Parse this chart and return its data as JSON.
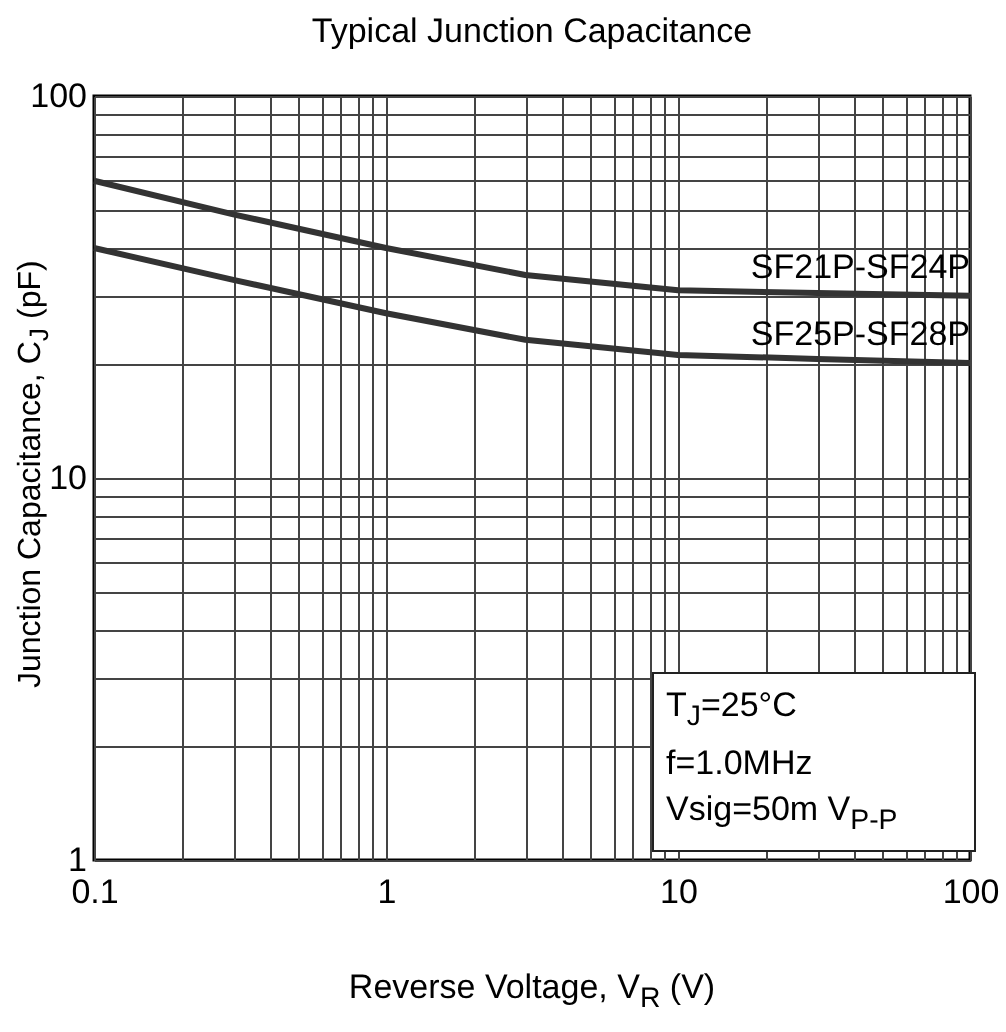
{
  "chart_data": {
    "type": "line",
    "title": "Typical Junction Capacitance",
    "xlabel": "Reverse Voltage, V$_{R}$ (V)",
    "ylabel": "Junction Capacitance, C$_{J}$ (pF)",
    "log": "xy",
    "grid": true,
    "line_style": "solid",
    "marker": "none",
    "x": [
      0.1,
      0.3,
      1,
      3,
      10,
      30,
      100
    ],
    "series": [
      {
        "name": "SF21P-SF24P",
        "color": "#333333",
        "values": [
          60,
          49,
          40,
          34,
          31,
          30.5,
          30
        ]
      },
      {
        "name": "SF25P-SF28P",
        "color": "#333333",
        "values": [
          40,
          33,
          27,
          23,
          21,
          20.5,
          20
        ]
      }
    ],
    "xlim": [
      0.1,
      100
    ],
    "ylim": [
      1,
      100
    ],
    "xticks": [
      0.1,
      {
        "value": 0.2,
        "label": null
      },
      {
        "value": 0.3,
        "label": null
      },
      {
        "value": 0.4,
        "label": null
      },
      {
        "value": 0.5,
        "label": null
      },
      {
        "value": 0.6,
        "label": null
      },
      {
        "value": 0.7,
        "label": null
      },
      {
        "value": 0.8,
        "label": null
      },
      {
        "value": 0.9,
        "label": null
      },
      1,
      {
        "value": 2,
        "label": null
      },
      {
        "value": 3,
        "label": null
      },
      {
        "value": 4,
        "label": null
      },
      {
        "value": 5,
        "label": null
      },
      {
        "value": 6,
        "label": null
      },
      {
        "value": 7,
        "label": null
      },
      {
        "value": 8,
        "label": null
      },
      {
        "value": 9,
        "label": null
      },
      10,
      {
        "value": 20,
        "label": null
      },
      {
        "value": 30,
        "label": null
      },
      {
        "value": 40,
        "label": null
      },
      {
        "value": 50,
        "label": null
      },
      {
        "value": 60,
        "label": null
      },
      {
        "value": 70,
        "label": null
      },
      {
        "value": 80,
        "label": null
      },
      {
        "value": 90,
        "label": null
      },
      100
    ],
    "yticks": [
      1,
      {
        "value": 2,
        "label": null
      },
      {
        "value": 3,
        "label": null
      },
      {
        "value": 4,
        "label": null
      },
      {
        "value": 5,
        "label": null
      },
      {
        "value": 6,
        "label": null
      },
      {
        "value": 7,
        "label": null
      },
      {
        "value": 8,
        "label": null
      },
      {
        "value": 9,
        "label": null
      },
      10,
      {
        "value": 20,
        "label": null
      },
      {
        "value": 30,
        "label": null
      },
      {
        "value": 40,
        "label": null
      },
      {
        "value": 50,
        "label": null
      },
      {
        "value": 60,
        "label": null
      },
      {
        "value": 70,
        "label": null
      },
      {
        "value": 80,
        "label": null
      },
      {
        "value": 90,
        "label": null
      },
      100
    ],
    "annotations": [
      "T$_{J}$=25°C",
      "f=1.0MHz",
      "Vsig=50m V$_{P-P}$"
    ]
  }
}
